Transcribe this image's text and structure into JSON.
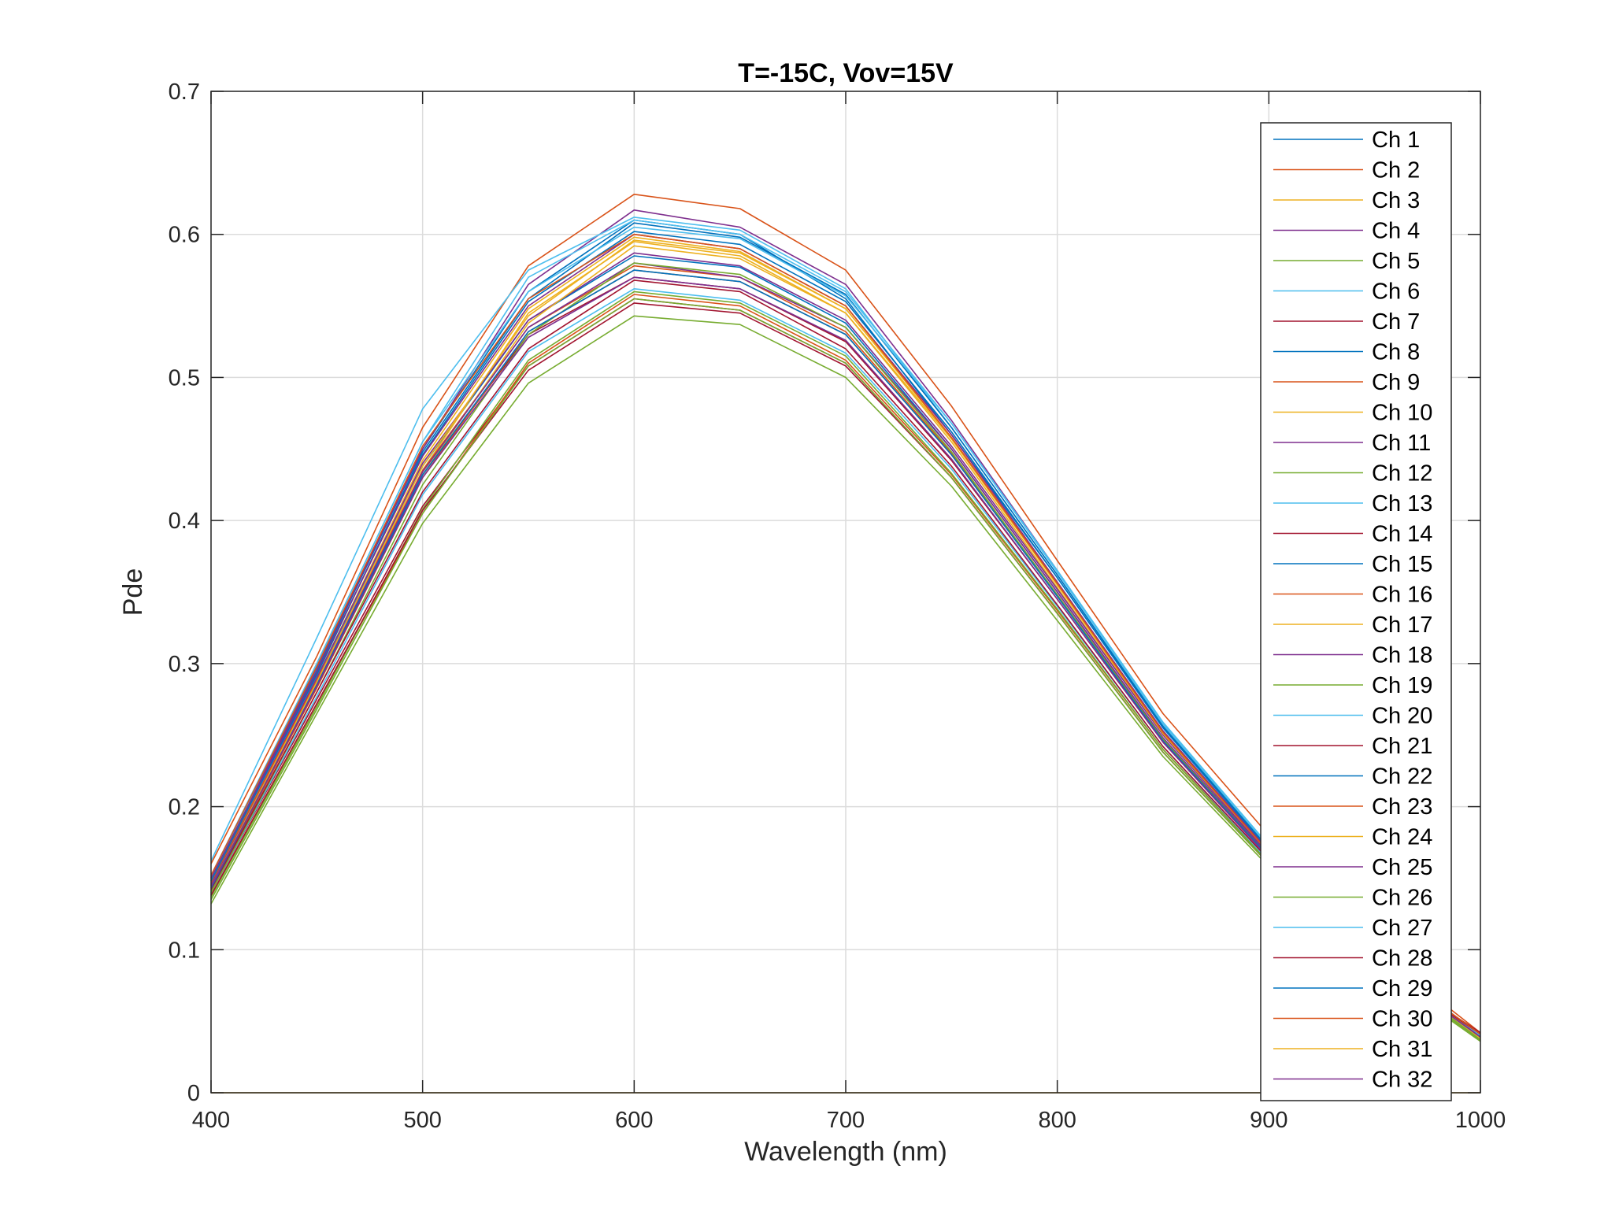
{
  "chart_data": {
    "type": "line",
    "title": "T=-15C, Vov=15V",
    "xlabel": "Wavelength (nm)",
    "ylabel": "Pde",
    "xlim": [
      400,
      1000
    ],
    "ylim": [
      0,
      0.7
    ],
    "xticks": [
      "400",
      "500",
      "600",
      "700",
      "800",
      "900",
      "1000"
    ],
    "yticks": [
      "0",
      "0.1",
      "0.2",
      "0.3",
      "0.4",
      "0.5",
      "0.6",
      "0.7"
    ],
    "grid": true,
    "legend_position": "top-right (inside)",
    "x": [
      400,
      450,
      500,
      550,
      600,
      650,
      700,
      750,
      800,
      850,
      900,
      950,
      1000
    ],
    "series": [
      {
        "name": "Ch 1",
        "color": "#0072BD",
        "values": [
          0.15,
          0.295,
          0.45,
          0.56,
          0.61,
          0.6,
          0.555,
          0.46,
          0.36,
          0.255,
          0.17,
          0.095,
          0.04
        ]
      },
      {
        "name": "Ch 2",
        "color": "#D95319",
        "values": [
          0.16,
          0.305,
          0.465,
          0.578,
          0.628,
          0.618,
          0.575,
          0.48,
          0.372,
          0.265,
          0.18,
          0.1,
          0.042
        ]
      },
      {
        "name": "Ch 3",
        "color": "#EDB120",
        "values": [
          0.145,
          0.29,
          0.442,
          0.548,
          0.598,
          0.588,
          0.548,
          0.458,
          0.355,
          0.252,
          0.168,
          0.094,
          0.039
        ]
      },
      {
        "name": "Ch 4",
        "color": "#7E2F8E",
        "values": [
          0.15,
          0.297,
          0.45,
          0.565,
          0.617,
          0.605,
          0.565,
          0.47,
          0.365,
          0.258,
          0.172,
          0.097,
          0.04
        ]
      },
      {
        "name": "Ch 5",
        "color": "#77AC30",
        "values": [
          0.132,
          0.265,
          0.398,
          0.496,
          0.543,
          0.537,
          0.5,
          0.424,
          0.33,
          0.235,
          0.158,
          0.088,
          0.036
        ]
      },
      {
        "name": "Ch 6",
        "color": "#4DBEEE",
        "values": [
          0.162,
          0.318,
          0.478,
          0.575,
          0.612,
          0.603,
          0.562,
          0.465,
          0.362,
          0.257,
          0.172,
          0.096,
          0.04
        ]
      },
      {
        "name": "Ch 7",
        "color": "#A2142F",
        "values": [
          0.14,
          0.275,
          0.41,
          0.508,
          0.555,
          0.547,
          0.51,
          0.43,
          0.335,
          0.238,
          0.16,
          0.09,
          0.041
        ]
      },
      {
        "name": "Ch 8",
        "color": "#0072BD",
        "values": [
          0.145,
          0.288,
          0.438,
          0.54,
          0.585,
          0.577,
          0.538,
          0.45,
          0.35,
          0.248,
          0.166,
          0.093,
          0.039
        ]
      },
      {
        "name": "Ch 9",
        "color": "#D95319",
        "values": [
          0.138,
          0.272,
          0.405,
          0.51,
          0.558,
          0.55,
          0.512,
          0.432,
          0.337,
          0.24,
          0.162,
          0.091,
          0.038
        ]
      },
      {
        "name": "Ch 10",
        "color": "#EDB120",
        "values": [
          0.142,
          0.285,
          0.435,
          0.545,
          0.595,
          0.585,
          0.545,
          0.455,
          0.353,
          0.25,
          0.167,
          0.093,
          0.039
        ]
      },
      {
        "name": "Ch 11",
        "color": "#7E2F8E",
        "values": [
          0.146,
          0.29,
          0.44,
          0.54,
          0.587,
          0.578,
          0.54,
          0.452,
          0.352,
          0.25,
          0.167,
          0.094,
          0.039
        ]
      },
      {
        "name": "Ch 12",
        "color": "#77AC30",
        "values": [
          0.137,
          0.27,
          0.408,
          0.512,
          0.56,
          0.552,
          0.515,
          0.433,
          0.338,
          0.24,
          0.161,
          0.09,
          0.037
        ]
      },
      {
        "name": "Ch 13",
        "color": "#4DBEEE",
        "values": [
          0.14,
          0.277,
          0.418,
          0.518,
          0.562,
          0.554,
          0.517,
          0.436,
          0.34,
          0.242,
          0.162,
          0.091,
          0.038
        ]
      },
      {
        "name": "Ch 14",
        "color": "#A2142F",
        "values": [
          0.145,
          0.285,
          0.432,
          0.53,
          0.57,
          0.562,
          0.525,
          0.442,
          0.345,
          0.245,
          0.165,
          0.092,
          0.04
        ]
      },
      {
        "name": "Ch 15",
        "color": "#0072BD",
        "values": [
          0.148,
          0.292,
          0.448,
          0.555,
          0.608,
          0.598,
          0.558,
          0.465,
          0.362,
          0.256,
          0.171,
          0.096,
          0.04
        ]
      },
      {
        "name": "Ch 16",
        "color": "#D95319",
        "values": [
          0.147,
          0.288,
          0.435,
          0.535,
          0.578,
          0.57,
          0.532,
          0.447,
          0.348,
          0.247,
          0.166,
          0.093,
          0.039
        ]
      },
      {
        "name": "Ch 17",
        "color": "#EDB120",
        "values": [
          0.143,
          0.283,
          0.432,
          0.538,
          0.592,
          0.583,
          0.545,
          0.457,
          0.355,
          0.251,
          0.168,
          0.093,
          0.038
        ]
      },
      {
        "name": "Ch 18",
        "color": "#7E2F8E",
        "values": [
          0.145,
          0.286,
          0.434,
          0.535,
          0.58,
          0.57,
          0.535,
          0.45,
          0.35,
          0.248,
          0.166,
          0.093,
          0.039
        ]
      },
      {
        "name": "Ch 19",
        "color": "#77AC30",
        "values": [
          0.14,
          0.28,
          0.425,
          0.53,
          0.58,
          0.572,
          0.535,
          0.448,
          0.348,
          0.247,
          0.165,
          0.092,
          0.037
        ]
      },
      {
        "name": "Ch 20",
        "color": "#4DBEEE",
        "values": [
          0.15,
          0.3,
          0.455,
          0.56,
          0.605,
          0.597,
          0.557,
          0.468,
          0.365,
          0.259,
          0.173,
          0.097,
          0.04
        ]
      },
      {
        "name": "Ch 21",
        "color": "#A2142F",
        "values": [
          0.138,
          0.272,
          0.407,
          0.505,
          0.552,
          0.545,
          0.508,
          0.43,
          0.335,
          0.238,
          0.16,
          0.09,
          0.042
        ]
      },
      {
        "name": "Ch 22",
        "color": "#0072BD",
        "values": [
          0.148,
          0.293,
          0.446,
          0.553,
          0.602,
          0.593,
          0.553,
          0.462,
          0.36,
          0.255,
          0.17,
          0.095,
          0.04
        ]
      },
      {
        "name": "Ch 23",
        "color": "#D95319",
        "values": [
          0.143,
          0.283,
          0.43,
          0.532,
          0.575,
          0.567,
          0.53,
          0.446,
          0.347,
          0.246,
          0.165,
          0.092,
          0.039
        ]
      },
      {
        "name": "Ch 24",
        "color": "#EDB120",
        "values": [
          0.144,
          0.287,
          0.438,
          0.543,
          0.596,
          0.587,
          0.548,
          0.458,
          0.356,
          0.252,
          0.168,
          0.094,
          0.039
        ]
      },
      {
        "name": "Ch 25",
        "color": "#7E2F8E",
        "values": [
          0.15,
          0.294,
          0.445,
          0.55,
          0.6,
          0.59,
          0.55,
          0.46,
          0.357,
          0.253,
          0.169,
          0.095,
          0.04
        ]
      },
      {
        "name": "Ch 26",
        "color": "#77AC30",
        "values": [
          0.135,
          0.268,
          0.405,
          0.508,
          0.555,
          0.547,
          0.51,
          0.43,
          0.335,
          0.238,
          0.16,
          0.089,
          0.036
        ]
      },
      {
        "name": "Ch 27",
        "color": "#4DBEEE",
        "values": [
          0.152,
          0.3,
          0.455,
          0.57,
          0.61,
          0.6,
          0.56,
          0.468,
          0.364,
          0.258,
          0.172,
          0.096,
          0.04
        ]
      },
      {
        "name": "Ch 28",
        "color": "#A2142F",
        "values": [
          0.142,
          0.28,
          0.42,
          0.52,
          0.568,
          0.56,
          0.52,
          0.438,
          0.341,
          0.242,
          0.163,
          0.091,
          0.041
        ]
      },
      {
        "name": "Ch 29",
        "color": "#0072BD",
        "values": [
          0.143,
          0.285,
          0.432,
          0.532,
          0.575,
          0.567,
          0.53,
          0.446,
          0.347,
          0.246,
          0.165,
          0.092,
          0.039
        ]
      },
      {
        "name": "Ch 30",
        "color": "#D95319",
        "values": [
          0.152,
          0.298,
          0.452,
          0.555,
          0.6,
          0.59,
          0.55,
          0.458,
          0.356,
          0.252,
          0.168,
          0.094,
          0.041
        ]
      },
      {
        "name": "Ch 31",
        "color": "#EDB120",
        "values": [
          0,
          0,
          0,
          0,
          0,
          0,
          0,
          0,
          0,
          0,
          0,
          0,
          0
        ]
      },
      {
        "name": "Ch 32",
        "color": "#7E2F8E",
        "values": [
          0.144,
          0.284,
          0.43,
          0.528,
          0.57,
          0.562,
          0.526,
          0.443,
          0.345,
          0.245,
          0.164,
          0.092,
          0.039
        ]
      }
    ]
  }
}
